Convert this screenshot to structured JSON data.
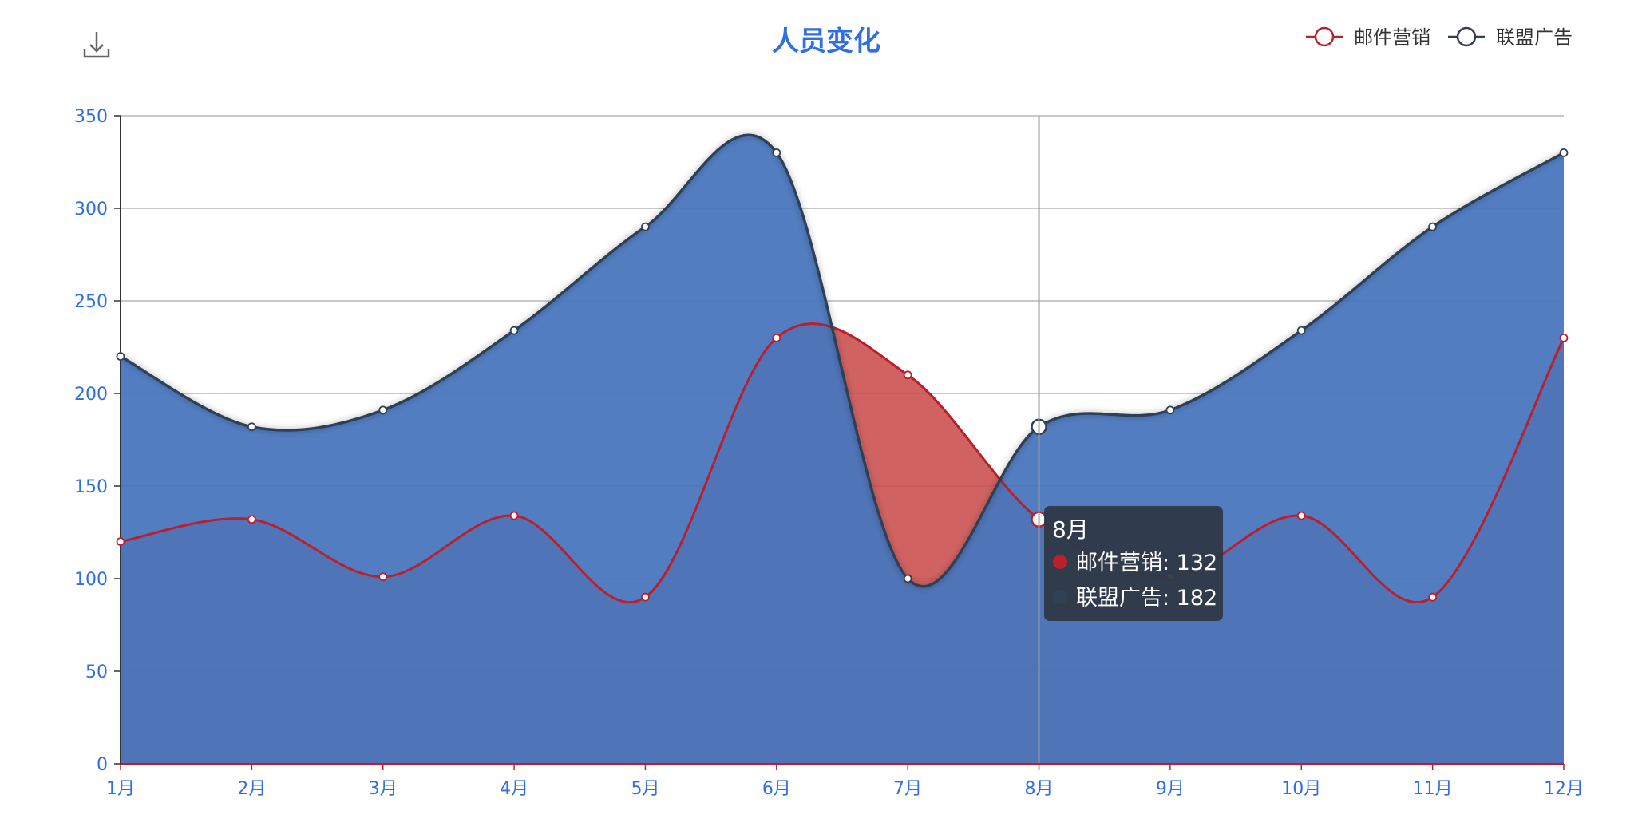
{
  "chart_data": {
    "type": "area",
    "title": "人员变化",
    "xlabel": "",
    "ylabel": "",
    "categories": [
      "1月",
      "2月",
      "3月",
      "4月",
      "5月",
      "6月",
      "7月",
      "8月",
      "9月",
      "10月",
      "11月",
      "12月"
    ],
    "ylim": [
      0,
      350
    ],
    "yticks": [
      0,
      50,
      100,
      150,
      200,
      250,
      300,
      350
    ],
    "grid": true,
    "legend": "top-right",
    "series": [
      {
        "name": "邮件营销",
        "values": [
          120,
          132,
          101,
          134,
          90,
          230,
          210,
          132,
          101,
          134,
          90,
          230
        ],
        "color": "#b9202b",
        "fill": "#c94848"
      },
      {
        "name": "联盟广告",
        "values": [
          220,
          182,
          191,
          234,
          290,
          330,
          100,
          182,
          191,
          234,
          290,
          330
        ],
        "color": "#2f4154",
        "fill": "#4775bd"
      }
    ],
    "tooltip": {
      "category": "8月",
      "index": 7,
      "lines": [
        "邮件营销: 132",
        "联盟广告: 182"
      ]
    },
    "colors": {
      "title": "#2f6fe0",
      "axis_text": "#2f6fe0",
      "grid": "#b7b7b7",
      "axis_line": "#333333",
      "x_axis_line": "#b9202b",
      "tooltip_bg": "#2f3948"
    }
  },
  "toolbar": {
    "download_icon": "download-icon"
  }
}
